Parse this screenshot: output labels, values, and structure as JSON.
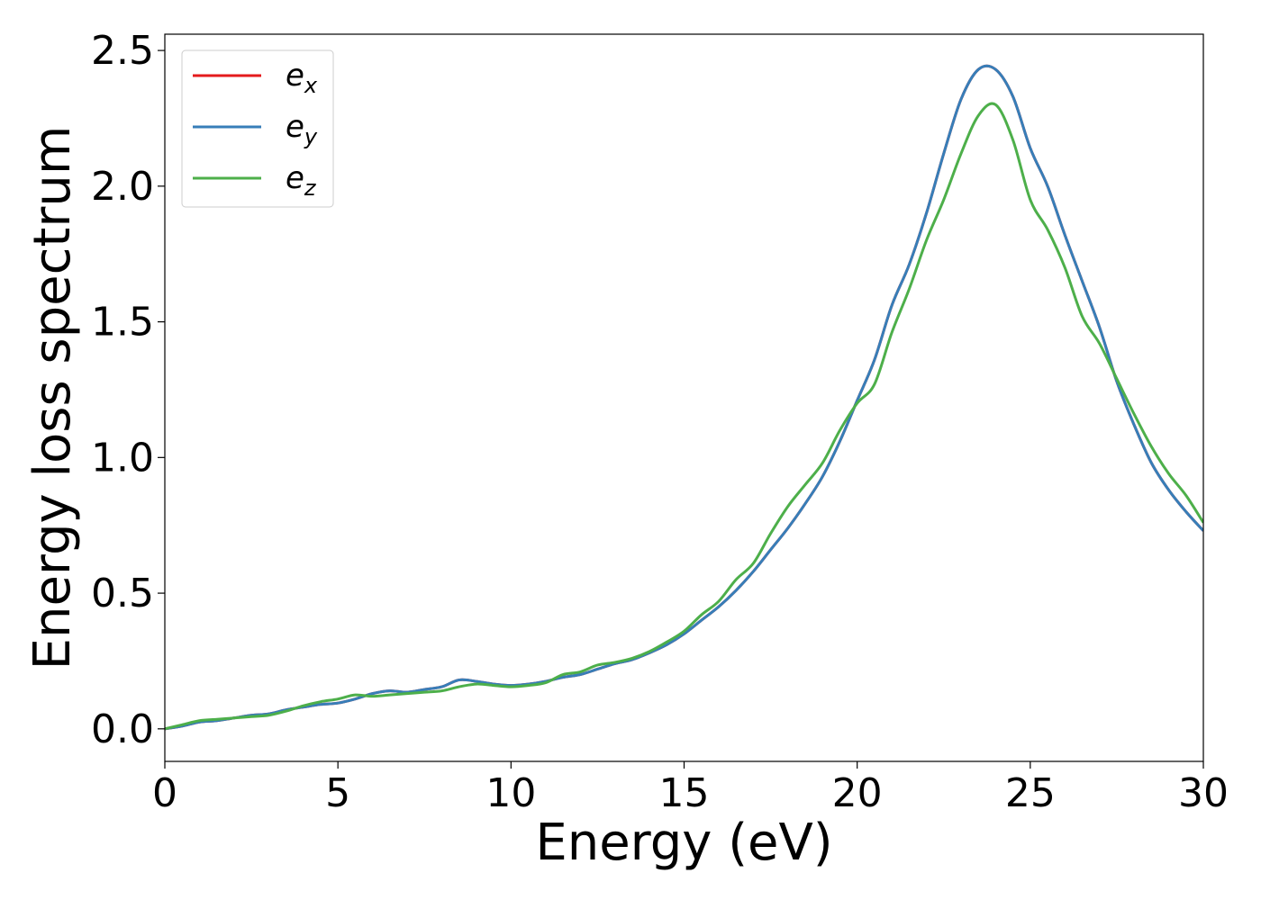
{
  "chart_data": {
    "type": "line",
    "title": "",
    "xlabel": "Energy (eV)",
    "ylabel": "Energy loss spectrum",
    "xlim": [
      0,
      30
    ],
    "ylim": [
      -0.12,
      2.56
    ],
    "xticks": [
      0,
      5,
      10,
      15,
      20,
      25,
      30
    ],
    "xtick_labels": [
      "0",
      "5",
      "10",
      "15",
      "20",
      "25",
      "30"
    ],
    "yticks": [
      0.0,
      0.5,
      1.0,
      1.5,
      2.0,
      2.5
    ],
    "ytick_labels": [
      "0.0",
      "0.5",
      "1.0",
      "1.5",
      "2.0",
      "2.5"
    ],
    "grid": false,
    "legend_position": "top-left",
    "colors": {
      "ex": "#e41a1c",
      "ey": "#377eb8",
      "ez": "#4daf4a"
    },
    "series": [
      {
        "name": "e_x",
        "legend_base": "e",
        "legend_sub": "x",
        "color": "#e41a1c",
        "x": [
          0,
          0.5,
          1,
          1.5,
          2,
          2.5,
          3,
          3.5,
          4,
          4.5,
          5,
          5.5,
          6,
          6.5,
          7,
          7.5,
          8,
          8.5,
          9,
          9.5,
          10,
          10.5,
          11,
          11.5,
          12,
          12.5,
          13,
          13.5,
          14,
          14.5,
          15,
          15.5,
          16,
          16.5,
          17,
          17.5,
          18,
          18.5,
          19,
          19.5,
          20,
          20.5,
          21,
          21.5,
          22,
          22.5,
          23,
          23.5,
          24,
          24.5,
          25,
          25.5,
          26,
          26.5,
          27,
          27.5,
          28,
          28.5,
          29,
          29.5,
          30
        ],
        "y": [
          0.0,
          0.01,
          0.025,
          0.03,
          0.04,
          0.05,
          0.055,
          0.07,
          0.08,
          0.09,
          0.095,
          0.11,
          0.13,
          0.14,
          0.135,
          0.145,
          0.155,
          0.18,
          0.175,
          0.165,
          0.16,
          0.165,
          0.175,
          0.19,
          0.2,
          0.22,
          0.24,
          0.255,
          0.28,
          0.31,
          0.35,
          0.4,
          0.45,
          0.51,
          0.58,
          0.66,
          0.74,
          0.83,
          0.93,
          1.06,
          1.21,
          1.36,
          1.56,
          1.71,
          1.9,
          2.12,
          2.32,
          2.43,
          2.43,
          2.33,
          2.14,
          2.0,
          1.82,
          1.65,
          1.48,
          1.28,
          1.12,
          0.98,
          0.88,
          0.8,
          0.73
        ]
      },
      {
        "name": "e_y",
        "legend_base": "e",
        "legend_sub": "y",
        "color": "#377eb8",
        "x": [
          0,
          0.5,
          1,
          1.5,
          2,
          2.5,
          3,
          3.5,
          4,
          4.5,
          5,
          5.5,
          6,
          6.5,
          7,
          7.5,
          8,
          8.5,
          9,
          9.5,
          10,
          10.5,
          11,
          11.5,
          12,
          12.5,
          13,
          13.5,
          14,
          14.5,
          15,
          15.5,
          16,
          16.5,
          17,
          17.5,
          18,
          18.5,
          19,
          19.5,
          20,
          20.5,
          21,
          21.5,
          22,
          22.5,
          23,
          23.5,
          24,
          24.5,
          25,
          25.5,
          26,
          26.5,
          27,
          27.5,
          28,
          28.5,
          29,
          29.5,
          30
        ],
        "y": [
          0.0,
          0.01,
          0.025,
          0.03,
          0.04,
          0.05,
          0.055,
          0.07,
          0.08,
          0.09,
          0.095,
          0.11,
          0.13,
          0.14,
          0.135,
          0.145,
          0.155,
          0.18,
          0.175,
          0.165,
          0.16,
          0.165,
          0.175,
          0.19,
          0.2,
          0.22,
          0.24,
          0.255,
          0.28,
          0.31,
          0.35,
          0.4,
          0.45,
          0.51,
          0.58,
          0.66,
          0.74,
          0.83,
          0.93,
          1.06,
          1.21,
          1.36,
          1.56,
          1.71,
          1.9,
          2.12,
          2.32,
          2.43,
          2.43,
          2.33,
          2.14,
          2.0,
          1.82,
          1.65,
          1.48,
          1.28,
          1.12,
          0.98,
          0.88,
          0.8,
          0.73
        ]
      },
      {
        "name": "e_z",
        "legend_base": "e",
        "legend_sub": "z",
        "color": "#4daf4a",
        "x": [
          0,
          0.5,
          1,
          1.5,
          2,
          2.5,
          3,
          3.5,
          4,
          4.5,
          5,
          5.5,
          6,
          6.5,
          7,
          7.5,
          8,
          8.5,
          9,
          9.5,
          10,
          10.5,
          11,
          11.5,
          12,
          12.5,
          13,
          13.5,
          14,
          14.5,
          15,
          15.5,
          16,
          16.5,
          17,
          17.5,
          18,
          18.5,
          19,
          19.5,
          20,
          20.5,
          21,
          21.5,
          22,
          22.5,
          23,
          23.5,
          24,
          24.5,
          25,
          25.5,
          26,
          26.5,
          27,
          27.5,
          28,
          28.5,
          29,
          29.5,
          30
        ],
        "y": [
          0.0,
          0.015,
          0.03,
          0.035,
          0.04,
          0.045,
          0.05,
          0.065,
          0.085,
          0.1,
          0.11,
          0.125,
          0.12,
          0.125,
          0.13,
          0.135,
          0.14,
          0.155,
          0.165,
          0.16,
          0.155,
          0.16,
          0.17,
          0.2,
          0.21,
          0.235,
          0.245,
          0.26,
          0.285,
          0.32,
          0.36,
          0.42,
          0.47,
          0.55,
          0.61,
          0.72,
          0.82,
          0.9,
          0.98,
          1.1,
          1.2,
          1.27,
          1.46,
          1.62,
          1.8,
          1.95,
          2.12,
          2.26,
          2.3,
          2.17,
          1.95,
          1.84,
          1.7,
          1.52,
          1.42,
          1.29,
          1.16,
          1.04,
          0.94,
          0.86,
          0.76
        ]
      }
    ]
  }
}
